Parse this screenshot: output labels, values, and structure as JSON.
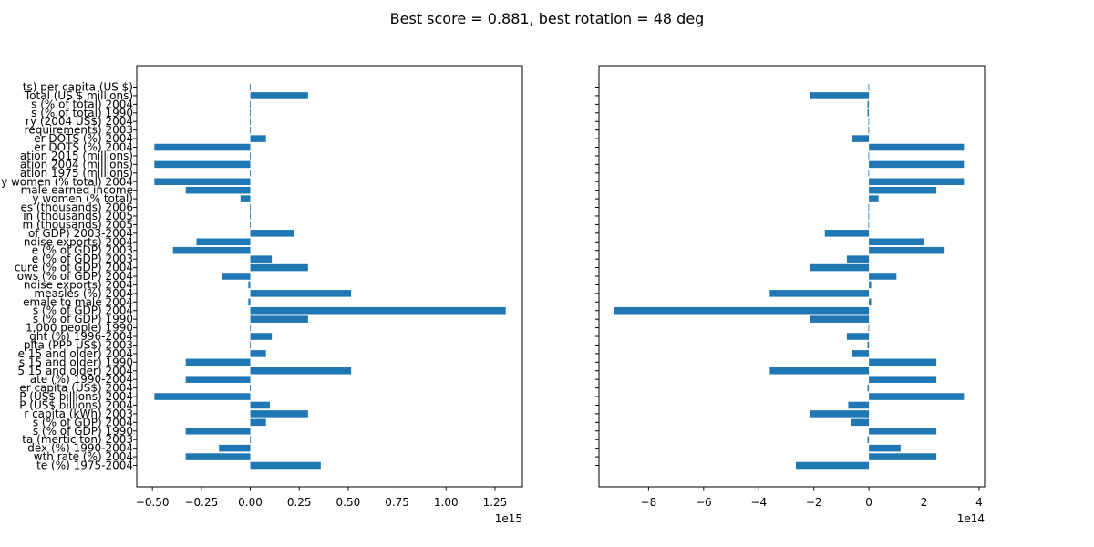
{
  "figure": {
    "title": "Best score = 0.881, best rotation = 48 deg"
  },
  "chart_data": [
    {
      "type": "bar",
      "orientation": "horizontal",
      "offset_label": "1e15",
      "scale": 1000000000000000.0,
      "xlim": [
        -0.58,
        1.39
      ],
      "xticks": [
        -0.5,
        -0.25,
        0.0,
        0.25,
        0.5,
        0.75,
        1.0,
        1.25
      ],
      "xtick_labels": [
        "−0.50",
        "−0.25",
        "0.00",
        "0.25",
        "0.50",
        "0.75",
        "1.00",
        "1.25"
      ],
      "bar_color": "#1f77b4",
      "categories": [
        "te (%) 1975-2004",
        "wth rate (%) 2004",
        "dex (%) 1990-2004",
        "ta (mertic ton) 2003",
        "s (% of GDP) 1990",
        "s (% of GDP) 2004",
        "r capita (kWh) 2003",
        "P (US$ billions) 2004",
        "P (US$ billions) 2004",
        "er capita (US$) 2004",
        "ate (%) 1990-2004",
        "5 15 and older) 2004",
        "s 15 and older) 1990",
        "e 15 and older) 2004",
        "pita (PPP US$) 2003",
        "ght (%) 1996-2004",
        "1,000 people) 1990",
        "s (% of GDP) 1990",
        "s (% of GDP) 2004",
        "emale to male 2004",
        "measles (%) 2004",
        "ndise exports) 2004",
        "ows (% of GDP) 2004",
        "cure (% of GDP) 2004",
        "e (% of GDP) 2003",
        "e (% of GDP) 2003",
        "ndise exports) 2004",
        "of GDP) 2003-2004",
        "m (thousands) 2005",
        "in (thousands) 2005",
        "es (thousands) 2006",
        "y women (% total)",
        "male earned income",
        "y women (% total) 2004",
        "ation 1975 (millions)",
        "ation 2004 (millions)",
        "ation 2015 (millions)",
        "er DOTS (%) 2004",
        "er DOTS (%) 2004",
        "requirements) 2003",
        "ry (2004 US$) 2004",
        "s (% of total) 1990",
        "s (% of total) 2004",
        "Total (US $ millions)",
        "ts) per capita (US $)"
      ],
      "values": [
        0.36,
        -0.33,
        -0.16,
        -0.001,
        -0.33,
        0.08,
        0.295,
        0.1,
        -0.49,
        -0.002,
        -0.33,
        0.515,
        -0.33,
        0.08,
        -0.002,
        0.11,
        -0.001,
        0.295,
        1.305,
        -0.01,
        0.515,
        -0.01,
        -0.145,
        0.295,
        0.11,
        -0.395,
        -0.275,
        0.225,
        -0.002,
        -0.002,
        -0.002,
        -0.05,
        -0.33,
        -0.49,
        -0.002,
        -0.49,
        -0.002,
        -0.49,
        0.08,
        -0.002,
        -0.002,
        -0.002,
        -0.002,
        0.295,
        -0.002
      ]
    },
    {
      "type": "bar",
      "orientation": "horizontal",
      "offset_label": "1e14",
      "scale": 100000000000000.0,
      "xlim": [
        -9.8,
        4.2
      ],
      "xticks": [
        -8,
        -6,
        -4,
        -2,
        0,
        2,
        4
      ],
      "xtick_labels": [
        "−8",
        "−6",
        "−4",
        "−2",
        "0",
        "2",
        "4"
      ],
      "bar_color": "#1f77b4",
      "values": [
        -2.65,
        2.45,
        1.15,
        -0.05,
        2.45,
        -0.65,
        -2.15,
        -0.75,
        3.45,
        -0.05,
        2.45,
        -3.6,
        2.45,
        -0.6,
        -0.05,
        -0.8,
        -0.02,
        -2.15,
        -9.25,
        0.08,
        -3.6,
        0.08,
        1.0,
        -2.15,
        -0.8,
        2.75,
        2.0,
        -1.6,
        -0.02,
        -0.02,
        -0.02,
        0.35,
        2.45,
        3.45,
        -0.02,
        3.45,
        -0.02,
        3.45,
        -0.6,
        -0.02,
        -0.02,
        -0.05,
        -0.05,
        -2.15,
        -0.02
      ]
    }
  ]
}
